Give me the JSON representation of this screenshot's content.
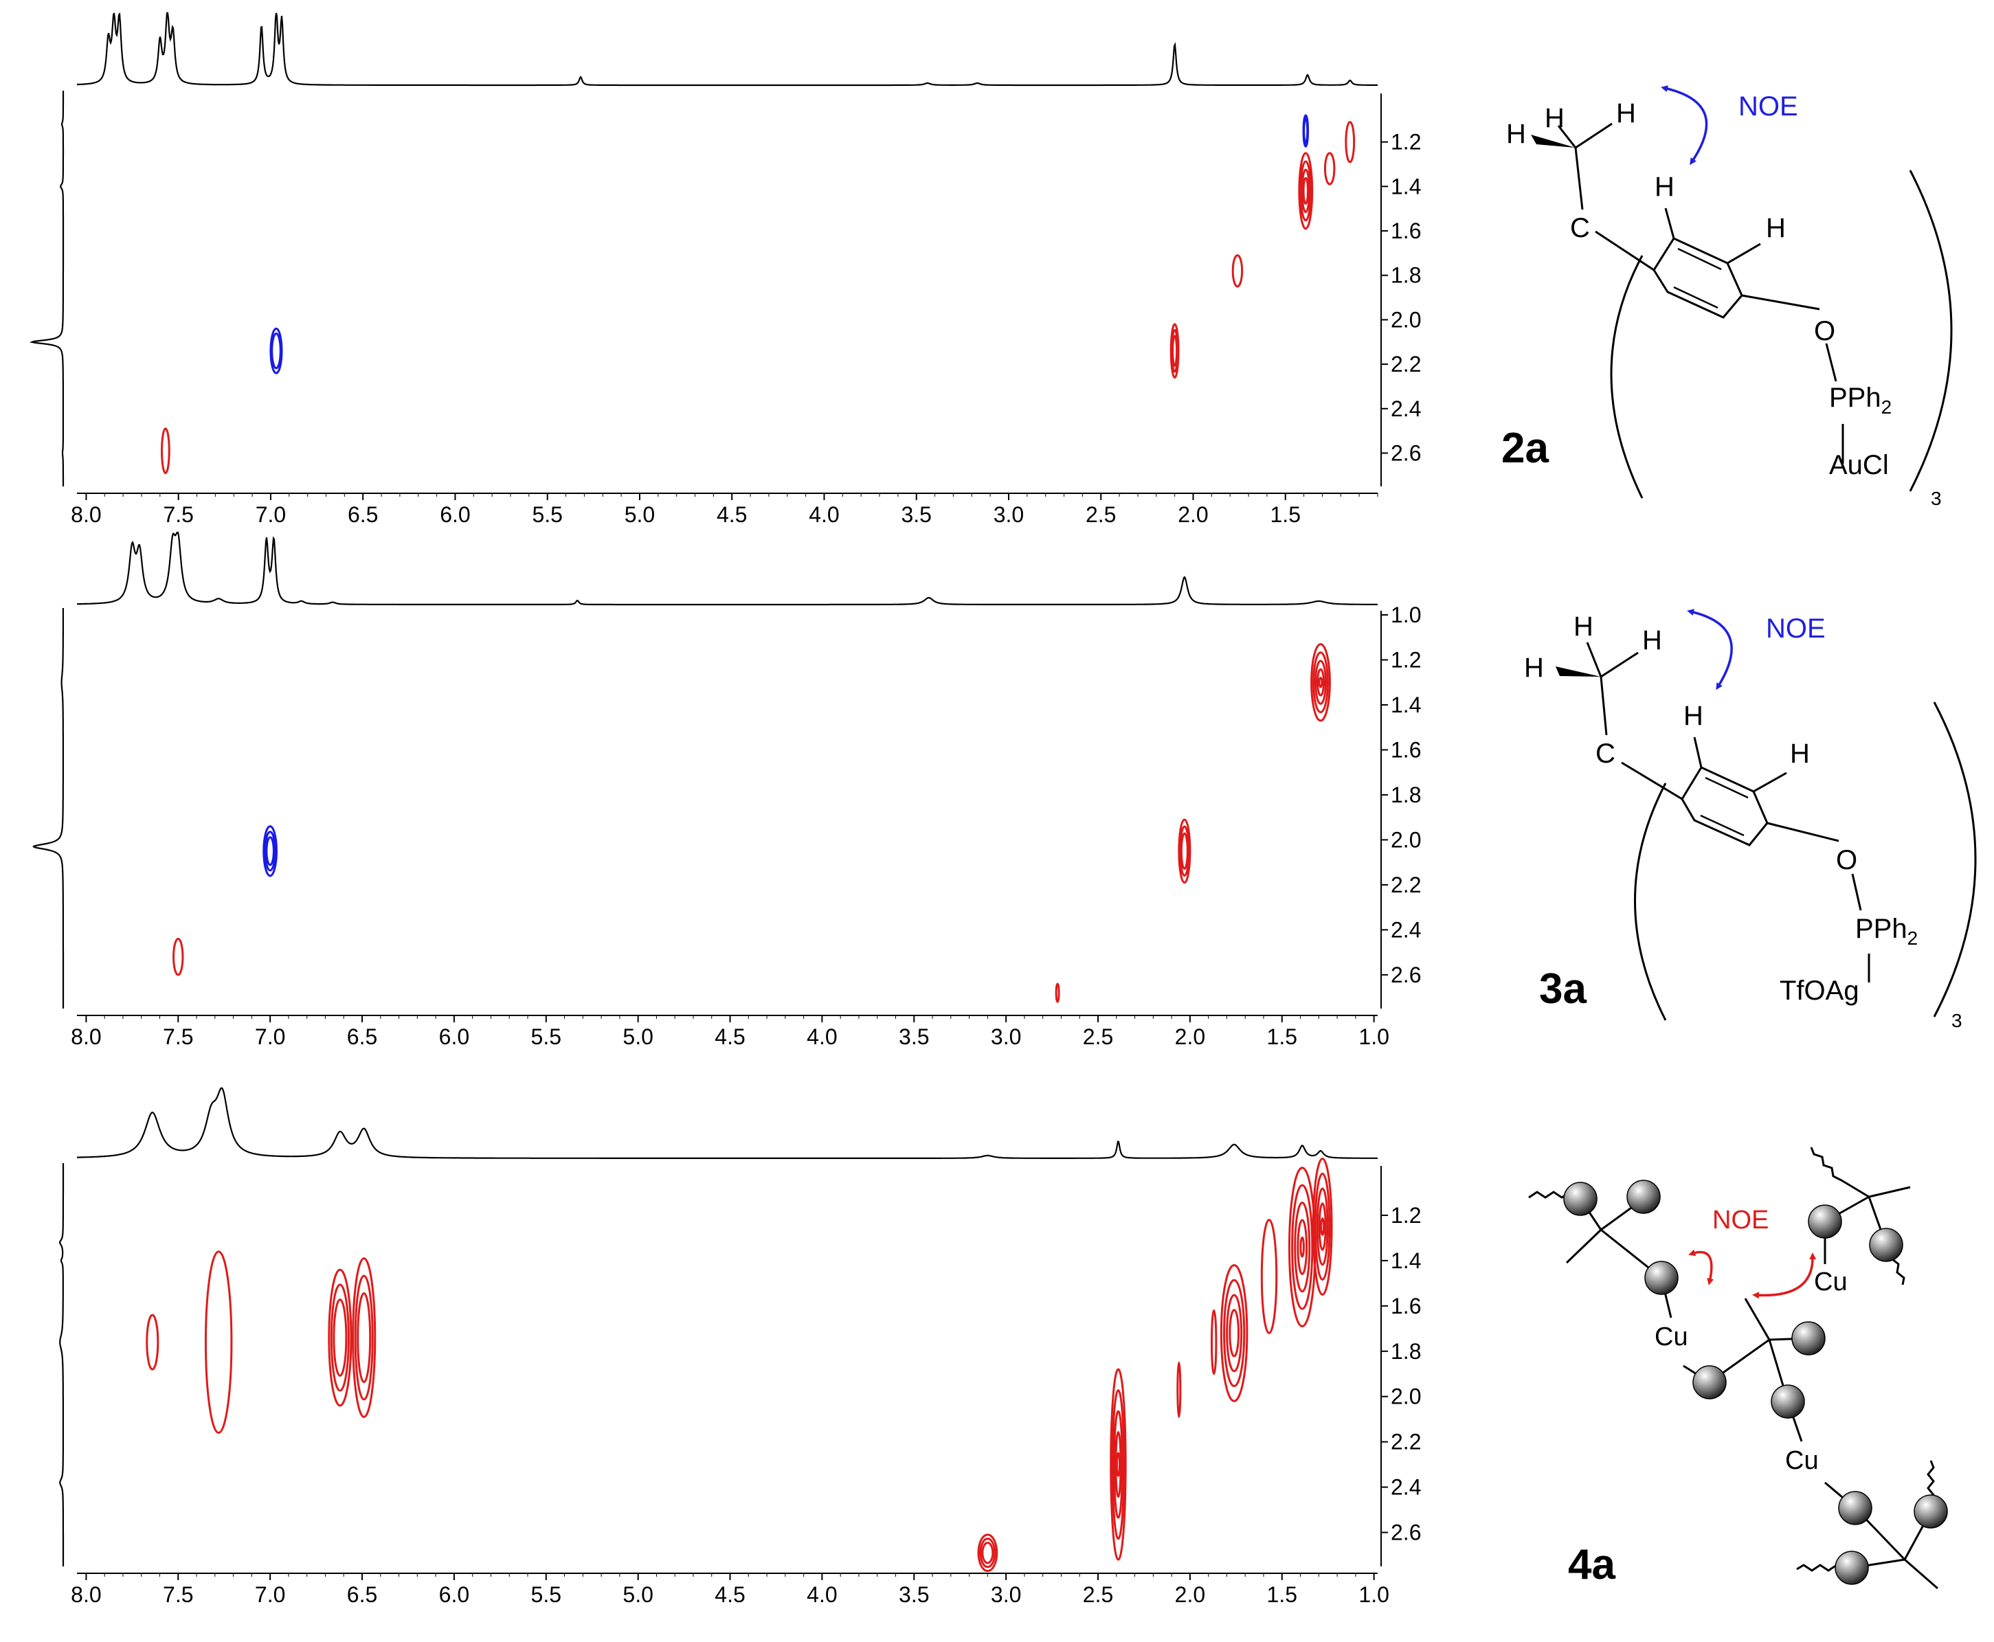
{
  "chart_data": [
    {
      "type": "2d-nmr-noesy",
      "panel": "2a",
      "x_ticks": [
        "8.0",
        "7.5",
        "7.0",
        "6.5",
        "6.0",
        "5.5",
        "5.0",
        "4.5",
        "4.0",
        "3.5",
        "3.0",
        "2.5",
        "2.0",
        "1.5"
      ],
      "y_ticks": [
        "1.2",
        "1.4",
        "1.6",
        "1.8",
        "2.0",
        "2.2",
        "2.4",
        "2.6"
      ],
      "xlim": [
        8.05,
        1.0
      ],
      "ylim": [
        1.0,
        2.75
      ],
      "projection_peaks": [
        {
          "ppm": 7.85,
          "h": 0.85,
          "w": 0.012
        },
        {
          "ppm": 7.82,
          "h": 0.9,
          "w": 0.012
        },
        {
          "ppm": 7.88,
          "h": 0.6,
          "w": 0.012
        },
        {
          "ppm": 7.6,
          "h": 0.6,
          "w": 0.012
        },
        {
          "ppm": 7.56,
          "h": 0.95,
          "w": 0.012
        },
        {
          "ppm": 7.53,
          "h": 0.7,
          "w": 0.012
        },
        {
          "ppm": 7.05,
          "h": 0.85,
          "w": 0.01
        },
        {
          "ppm": 6.97,
          "h": 1.0,
          "w": 0.01
        },
        {
          "ppm": 6.94,
          "h": 0.9,
          "w": 0.01
        },
        {
          "ppm": 5.32,
          "h": 0.12,
          "w": 0.01
        },
        {
          "ppm": 3.44,
          "h": 0.03,
          "w": 0.02
        },
        {
          "ppm": 3.17,
          "h": 0.03,
          "w": 0.02
        },
        {
          "ppm": 2.1,
          "h": 0.6,
          "w": 0.01
        },
        {
          "ppm": 1.38,
          "h": 0.15,
          "w": 0.012
        },
        {
          "ppm": 1.15,
          "h": 0.07,
          "w": 0.012
        }
      ],
      "side_peaks": [
        {
          "ppm": 1.12,
          "h": 0.04,
          "w": 0.012
        },
        {
          "ppm": 1.4,
          "h": 0.08,
          "w": 0.012
        },
        {
          "ppm": 2.1,
          "h": 0.95,
          "w": 0.01
        },
        {
          "ppm": 2.6,
          "h": 0.02,
          "w": 0.02
        }
      ],
      "cross_peaks": [
        {
          "x": 1.39,
          "y": 1.15,
          "rx": 0.012,
          "ry": 0.07,
          "color": "blue",
          "n": 2
        },
        {
          "x": 1.15,
          "y": 1.2,
          "rx": 0.022,
          "ry": 0.09,
          "color": "red",
          "n": 1
        },
        {
          "x": 1.26,
          "y": 1.32,
          "rx": 0.025,
          "ry": 0.07,
          "color": "red",
          "n": 1
        },
        {
          "x": 1.39,
          "y": 1.42,
          "rx": 0.035,
          "ry": 0.17,
          "color": "red",
          "n": 4
        },
        {
          "x": 1.76,
          "y": 1.78,
          "rx": 0.025,
          "ry": 0.07,
          "color": "red",
          "n": 1
        },
        {
          "x": 2.1,
          "y": 2.14,
          "rx": 0.02,
          "ry": 0.12,
          "color": "red",
          "n": 3
        },
        {
          "x": 6.97,
          "y": 2.14,
          "rx": 0.03,
          "ry": 0.1,
          "color": "blue",
          "n": 2
        },
        {
          "x": 7.57,
          "y": 2.59,
          "rx": 0.02,
          "ry": 0.1,
          "color": "red",
          "n": 1
        }
      ]
    },
    {
      "type": "2d-nmr-noesy",
      "panel": "3a",
      "x_ticks": [
        "8.0",
        "7.5",
        "7.0",
        "6.5",
        "6.0",
        "5.5",
        "5.0",
        "4.5",
        "4.0",
        "3.5",
        "3.0",
        "2.5",
        "2.0",
        "1.5",
        "1.0"
      ],
      "y_ticks": [
        "1.0",
        "1.2",
        "1.4",
        "1.6",
        "1.8",
        "2.0",
        "2.2",
        "2.4",
        "2.6"
      ],
      "xlim": [
        8.05,
        0.98
      ],
      "ylim": [
        1.0,
        2.75
      ],
      "projection_peaks": [
        {
          "ppm": 7.75,
          "h": 0.75,
          "w": 0.02
        },
        {
          "ppm": 7.71,
          "h": 0.7,
          "w": 0.02
        },
        {
          "ppm": 7.53,
          "h": 0.75,
          "w": 0.02
        },
        {
          "ppm": 7.5,
          "h": 0.8,
          "w": 0.02
        },
        {
          "ppm": 7.28,
          "h": 0.07,
          "w": 0.03
        },
        {
          "ppm": 7.02,
          "h": 0.9,
          "w": 0.012
        },
        {
          "ppm": 6.98,
          "h": 0.9,
          "w": 0.012
        },
        {
          "ppm": 6.83,
          "h": 0.04,
          "w": 0.02
        },
        {
          "ppm": 6.66,
          "h": 0.03,
          "w": 0.02
        },
        {
          "ppm": 5.33,
          "h": 0.06,
          "w": 0.01
        },
        {
          "ppm": 3.42,
          "h": 0.1,
          "w": 0.03
        },
        {
          "ppm": 2.03,
          "h": 0.4,
          "w": 0.02
        },
        {
          "ppm": 1.3,
          "h": 0.05,
          "w": 0.05
        }
      ],
      "side_peaks": [
        {
          "ppm": 1.3,
          "h": 0.05,
          "w": 0.05
        },
        {
          "ppm": 2.03,
          "h": 0.9,
          "w": 0.015
        }
      ],
      "cross_peaks": [
        {
          "x": 1.29,
          "y": 1.3,
          "rx": 0.05,
          "ry": 0.17,
          "color": "red",
          "n": 5
        },
        {
          "x": 2.03,
          "y": 2.05,
          "rx": 0.03,
          "ry": 0.14,
          "color": "red",
          "n": 3
        },
        {
          "x": 7.0,
          "y": 2.05,
          "rx": 0.035,
          "ry": 0.11,
          "color": "blue",
          "n": 3
        },
        {
          "x": 7.5,
          "y": 2.52,
          "rx": 0.025,
          "ry": 0.08,
          "color": "red",
          "n": 1
        },
        {
          "x": 2.72,
          "y": 2.68,
          "rx": 0.004,
          "ry": 0.04,
          "color": "red",
          "n": 1
        }
      ]
    },
    {
      "type": "2d-nmr-noesy",
      "panel": "4a",
      "x_ticks": [
        "8.0",
        "7.5",
        "7.0",
        "6.5",
        "6.0",
        "5.5",
        "5.0",
        "4.5",
        "4.0",
        "3.5",
        "3.0",
        "2.5",
        "2.0",
        "1.5",
        "1.0"
      ],
      "y_ticks": [
        "1.2",
        "1.4",
        "1.6",
        "1.8",
        "2.0",
        "2.2",
        "2.4",
        "2.6"
      ],
      "xlim": [
        8.05,
        0.98
      ],
      "ylim": [
        1.0,
        2.75
      ],
      "projection_peaks": [
        {
          "ppm": 7.64,
          "h": 0.65,
          "w": 0.05
        },
        {
          "ppm": 7.32,
          "h": 0.5,
          "w": 0.04
        },
        {
          "ppm": 7.26,
          "h": 0.85,
          "w": 0.04
        },
        {
          "ppm": 6.62,
          "h": 0.35,
          "w": 0.04
        },
        {
          "ppm": 6.49,
          "h": 0.4,
          "w": 0.04
        },
        {
          "ppm": 3.1,
          "h": 0.04,
          "w": 0.04
        },
        {
          "ppm": 2.39,
          "h": 0.25,
          "w": 0.01
        },
        {
          "ppm": 1.76,
          "h": 0.2,
          "w": 0.04
        },
        {
          "ppm": 1.39,
          "h": 0.18,
          "w": 0.02
        },
        {
          "ppm": 1.29,
          "h": 0.1,
          "w": 0.02
        }
      ],
      "side_peaks": [
        {
          "ppm": 1.32,
          "h": 0.1,
          "w": 0.015
        },
        {
          "ppm": 1.4,
          "h": 0.06,
          "w": 0.012
        },
        {
          "ppm": 1.76,
          "h": 0.1,
          "w": 0.04
        },
        {
          "ppm": 2.38,
          "h": 0.1,
          "w": 0.02
        }
      ],
      "cross_peaks": [
        {
          "x": 7.64,
          "y": 1.76,
          "rx": 0.03,
          "ry": 0.12,
          "color": "red",
          "n": 1
        },
        {
          "x": 7.28,
          "y": 1.76,
          "rx": 0.07,
          "ry": 0.4,
          "color": "red",
          "n": 1
        },
        {
          "x": 6.62,
          "y": 1.74,
          "rx": 0.06,
          "ry": 0.3,
          "color": "red",
          "n": 3
        },
        {
          "x": 6.49,
          "y": 1.74,
          "rx": 0.06,
          "ry": 0.35,
          "color": "red",
          "n": 3
        },
        {
          "x": 3.1,
          "y": 2.69,
          "rx": 0.05,
          "ry": 0.08,
          "color": "red",
          "n": 3
        },
        {
          "x": 2.39,
          "y": 2.3,
          "rx": 0.04,
          "ry": 0.42,
          "color": "red",
          "n": 5
        },
        {
          "x": 2.06,
          "y": 1.97,
          "rx": 0.006,
          "ry": 0.12,
          "color": "red",
          "n": 1
        },
        {
          "x": 1.87,
          "y": 1.76,
          "rx": 0.012,
          "ry": 0.14,
          "color": "red",
          "n": 1
        },
        {
          "x": 1.76,
          "y": 1.72,
          "rx": 0.07,
          "ry": 0.3,
          "color": "red",
          "n": 4
        },
        {
          "x": 1.57,
          "y": 1.47,
          "rx": 0.04,
          "ry": 0.25,
          "color": "red",
          "n": 1
        },
        {
          "x": 1.39,
          "y": 1.34,
          "rx": 0.07,
          "ry": 0.35,
          "color": "red",
          "n": 5
        },
        {
          "x": 1.28,
          "y": 1.25,
          "rx": 0.05,
          "ry": 0.3,
          "color": "red",
          "n": 5
        }
      ]
    }
  ],
  "structure_2a": {
    "h1": "H",
    "h2": "H",
    "h3": "H",
    "c": "C",
    "h4": "H",
    "h5": "H",
    "o": "O",
    "p": "PPh",
    "p_sub": "2",
    "metal": "AuCl",
    "n": "3",
    "noe": "NOE",
    "label": "2a"
  },
  "structure_3a": {
    "h1": "H",
    "h2": "H",
    "h3": "H",
    "c": "C",
    "h4": "H",
    "h5": "H",
    "o": "O",
    "p": "PPh",
    "p_sub": "2",
    "metal": "TfOAg",
    "n": "3",
    "noe": "NOE",
    "label": "3a"
  },
  "structure_4a": {
    "cu1": "Cu",
    "cu2": "Cu",
    "cu3": "Cu",
    "noe": "NOE",
    "label": "4a"
  },
  "colors": {
    "positive": "#e01a1a",
    "negative": "#1a1ae6",
    "trace": "#000000",
    "noe_blue": "#1f1fe0",
    "noe_red": "#e01a1a"
  }
}
